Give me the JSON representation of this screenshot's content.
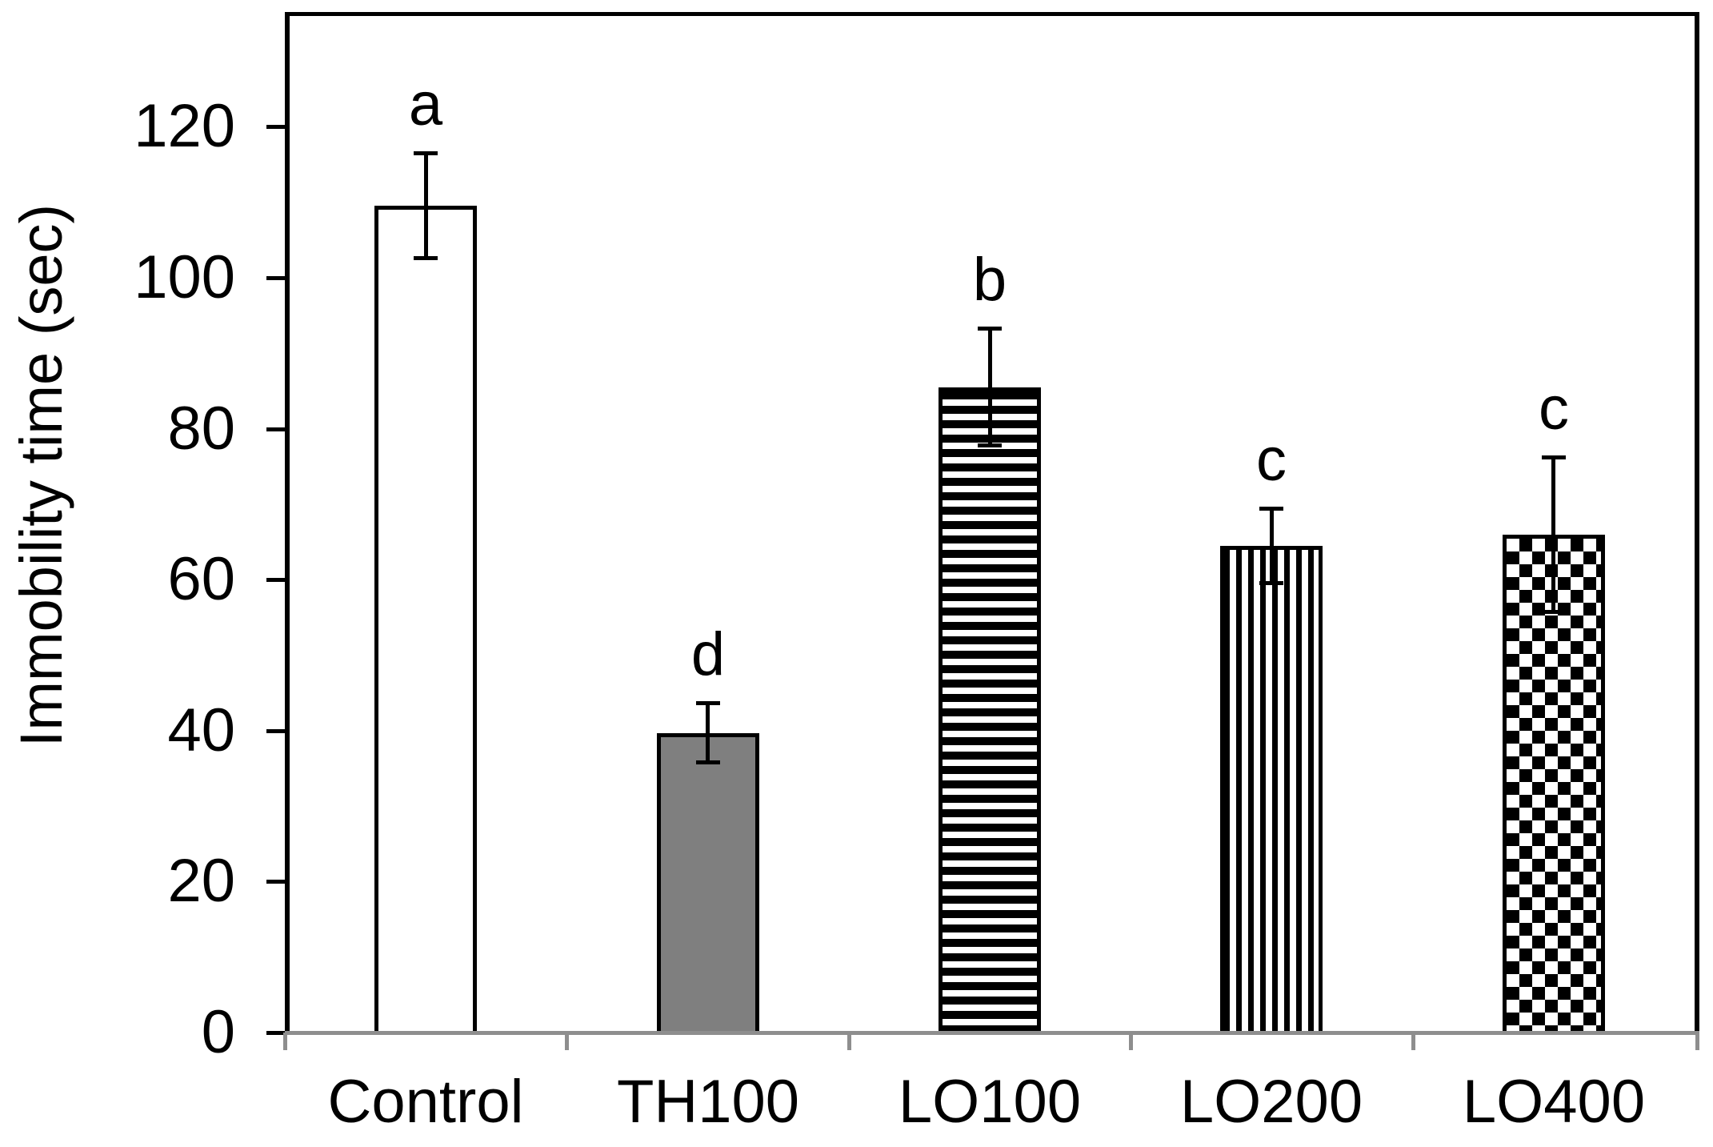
{
  "figure": {
    "background": "#ffffff",
    "y_axis_color": "#000000",
    "x_axis_color": "#8e8e8e",
    "bar_border_color": "#000000",
    "solid_gray_fill": "#7f7f7f",
    "error_bar_color": "#000000"
  },
  "chart_data": {
    "type": "bar",
    "title": "",
    "xlabel": "",
    "ylabel": "Immobility time (sec)",
    "categories": [
      "Control",
      "TH100",
      "LO100",
      "LO200",
      "LO400"
    ],
    "values": [
      109.5,
      39.7,
      85.5,
      64.5,
      66
    ],
    "errors": [
      7,
      4,
      7.8,
      5,
      10.3
    ],
    "significance_letters": [
      "a",
      "d",
      "b",
      "c",
      "c"
    ],
    "bar_patterns": [
      "plain-white",
      "solid-gray",
      "horizontal-stripes",
      "vertical-stripes",
      "checkerboard"
    ],
    "y_ticks": [
      0,
      20,
      40,
      60,
      80,
      100,
      120
    ],
    "ylim": [
      0,
      135
    ],
    "grid": false,
    "legend": false
  }
}
